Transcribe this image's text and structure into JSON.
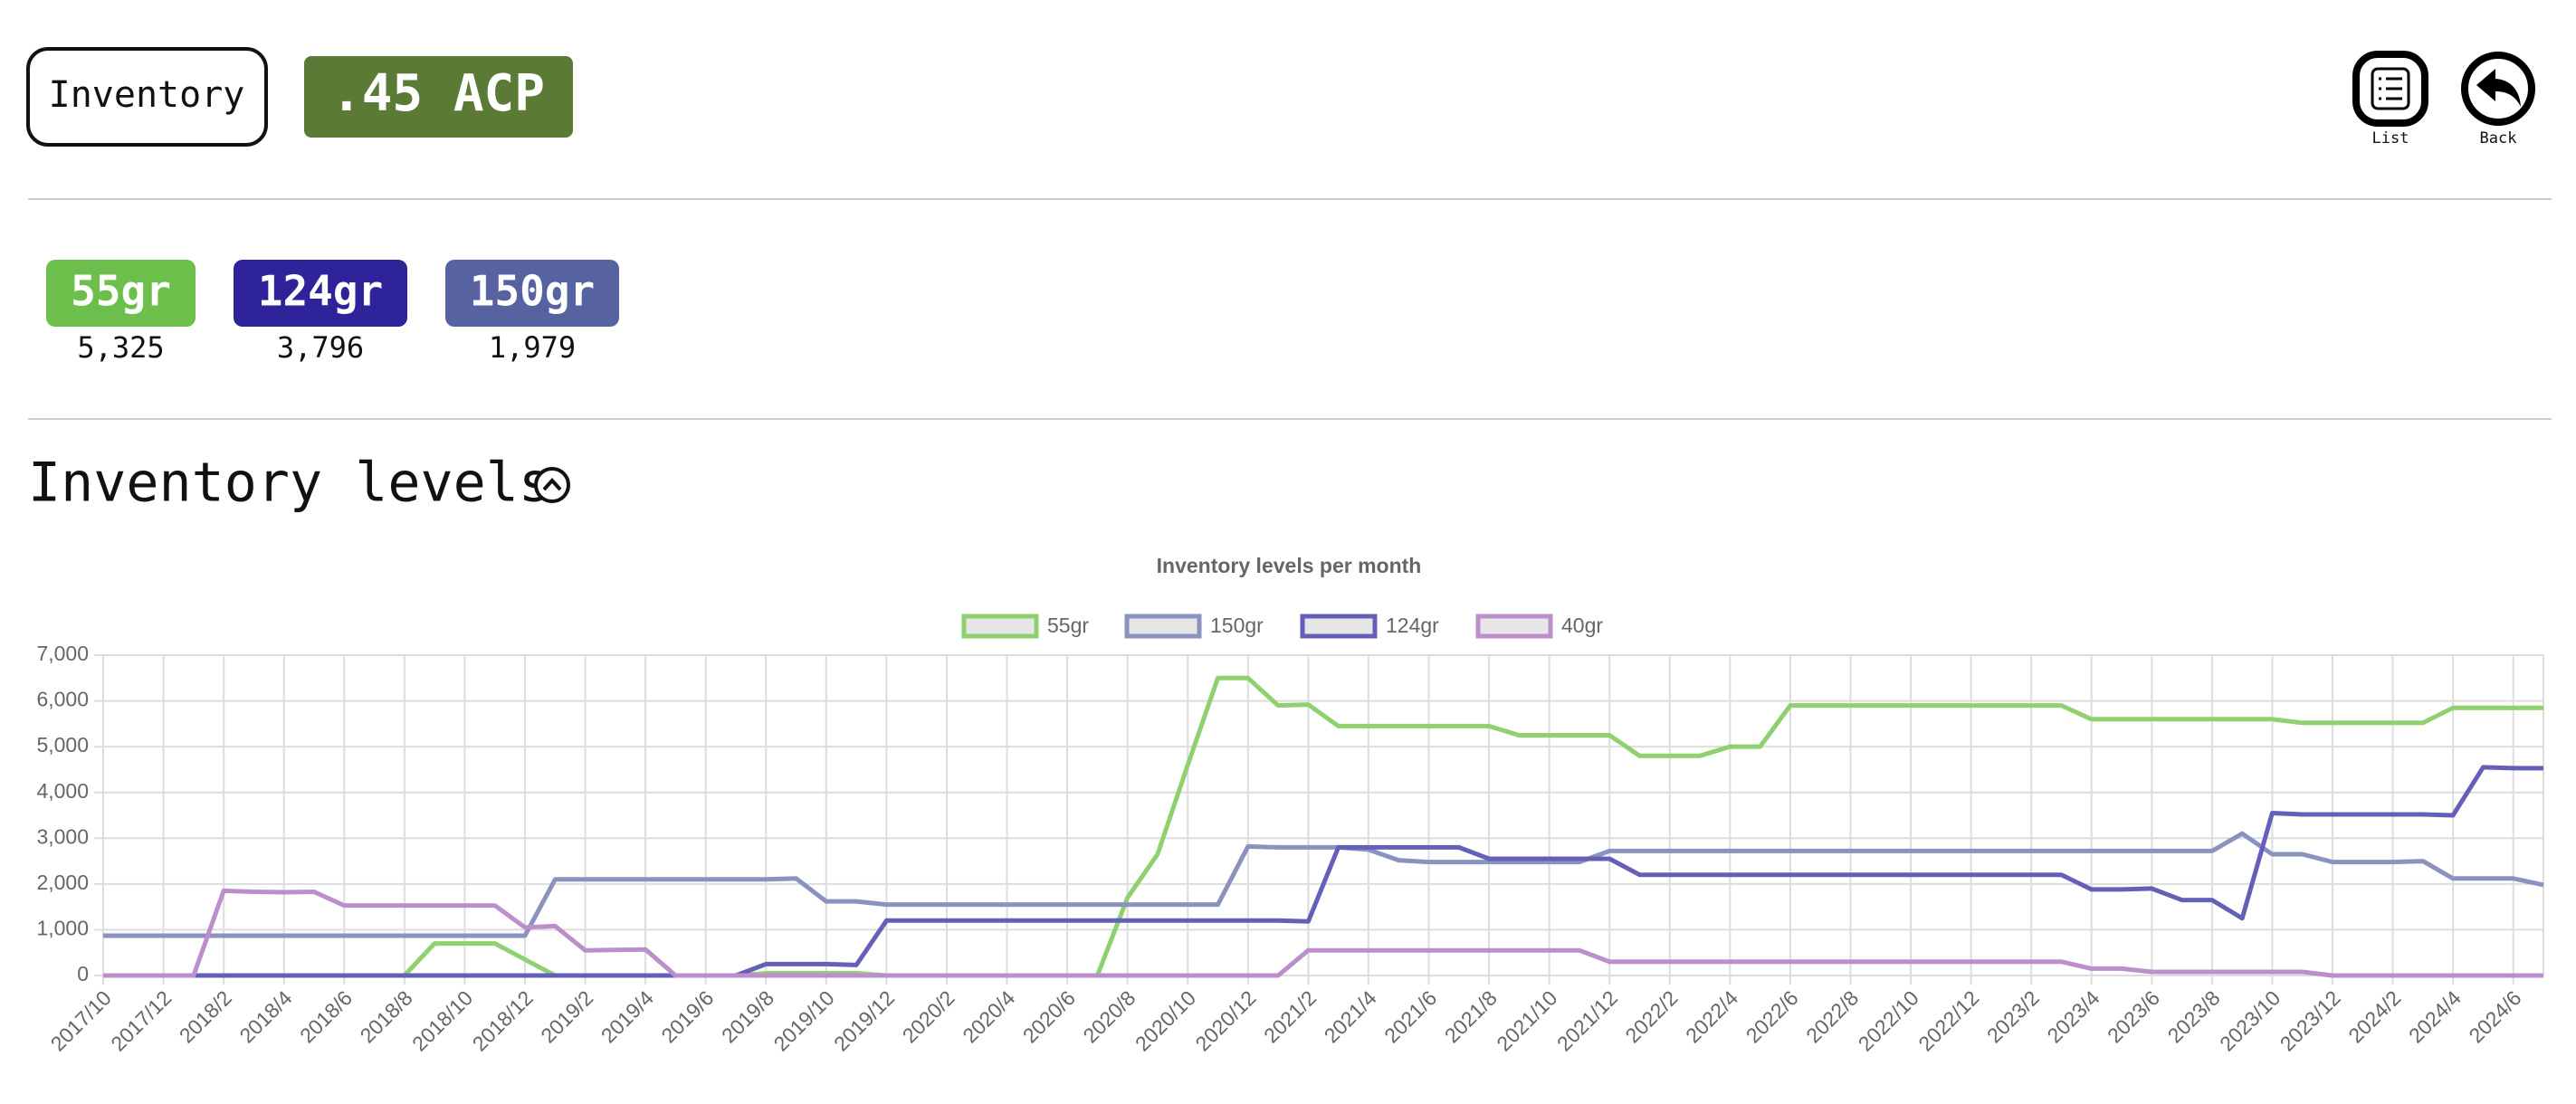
{
  "header": {
    "title": "Inventory",
    "caliber": ".45 ACP",
    "actions": [
      {
        "label": "List"
      },
      {
        "label": "Back"
      }
    ]
  },
  "summary": [
    {
      "name": "55gr",
      "count": "5,325",
      "color": "#6cbf4a"
    },
    {
      "name": "124gr",
      "count": "3,796",
      "color": "#2e2398"
    },
    {
      "name": "150gr",
      "count": "1,979",
      "color": "#5663a0"
    }
  ],
  "section_title": "Inventory levels",
  "chart_data": {
    "type": "line",
    "title": "Inventory levels per month",
    "legend": "top",
    "grid": true,
    "categories": [
      "2017/10",
      null,
      "2017/12",
      null,
      "2018/2",
      null,
      "2018/4",
      null,
      "2018/6",
      null,
      "2018/8",
      null,
      "2018/10",
      null,
      "2018/12",
      null,
      "2019/2",
      null,
      "2019/4",
      null,
      "2019/6",
      null,
      "2019/8",
      null,
      "2019/10",
      null,
      "2019/12",
      null,
      "2020/2",
      null,
      "2020/4",
      null,
      "2020/6",
      null,
      "2020/8",
      null,
      "2020/10",
      null,
      "2020/12",
      null,
      "2021/2",
      null,
      "2021/4",
      null,
      "2021/6",
      null,
      "2021/8",
      null,
      "2021/10",
      null,
      "2021/12",
      null,
      "2022/2",
      null,
      "2022/4",
      null,
      "2022/6",
      null,
      "2022/8",
      null,
      "2022/10",
      null,
      "2022/12",
      null,
      "2023/2",
      null,
      "2023/4",
      null,
      "2023/6",
      null,
      "2023/8",
      null,
      "2023/10",
      null,
      "2023/12",
      null,
      "2024/2",
      null,
      "2024/4",
      null,
      "2024/6",
      null
    ],
    "ylim": [
      0,
      7000
    ],
    "yticks": [
      0,
      {
        "value": 1000,
        "label": "1,000"
      },
      {
        "value": 2000,
        "label": "2,000"
      },
      {
        "value": 3000,
        "label": "3,000"
      },
      {
        "value": 4000,
        "label": "4,000"
      },
      {
        "value": 5000,
        "label": "5,000"
      },
      {
        "value": 6000,
        "label": "6,000"
      },
      {
        "value": 7000,
        "label": "7,000"
      }
    ],
    "series": [
      {
        "name": "55gr",
        "color": "#8fd06f",
        "values": [
          0,
          0,
          0,
          0,
          0,
          0,
          0,
          0,
          0,
          0,
          0,
          700,
          700,
          700,
          350,
          0,
          0,
          0,
          0,
          0,
          0,
          0,
          50,
          50,
          50,
          50,
          0,
          0,
          0,
          0,
          0,
          0,
          0,
          0,
          1700,
          2650,
          4600,
          6500,
          6500,
          5900,
          5920,
          5450,
          5450,
          5450,
          5450,
          5450,
          5450,
          5250,
          5250,
          5250,
          5250,
          4800,
          4800,
          4800,
          5000,
          5000,
          5900,
          5900,
          5900,
          5900,
          5900,
          5900,
          5900,
          5900,
          5900,
          5900,
          5600,
          5600,
          5600,
          5600,
          5600,
          5600,
          5600,
          5520,
          5520,
          5520,
          5520,
          5520,
          5850,
          5850,
          5850,
          5850
        ]
      },
      {
        "name": "150gr",
        "color": "#8a92bf",
        "values": [
          870,
          870,
          870,
          870,
          870,
          870,
          870,
          870,
          870,
          870,
          870,
          870,
          870,
          870,
          870,
          2100,
          2100,
          2100,
          2100,
          2100,
          2100,
          2100,
          2100,
          2120,
          1620,
          1620,
          1550,
          1550,
          1550,
          1550,
          1550,
          1550,
          1550,
          1550,
          1550,
          1550,
          1550,
          1550,
          2820,
          2800,
          2800,
          2800,
          2750,
          2520,
          2480,
          2480,
          2480,
          2480,
          2480,
          2480,
          2720,
          2720,
          2720,
          2720,
          2720,
          2720,
          2720,
          2720,
          2720,
          2720,
          2720,
          2720,
          2720,
          2720,
          2720,
          2720,
          2720,
          2720,
          2720,
          2720,
          2720,
          3100,
          2650,
          2650,
          2480,
          2480,
          2480,
          2500,
          2120,
          2120,
          2120,
          1980
        ]
      },
      {
        "name": "124gr",
        "color": "#6460b8",
        "values": [
          0,
          0,
          0,
          0,
          0,
          0,
          0,
          0,
          0,
          0,
          0,
          0,
          0,
          0,
          0,
          0,
          0,
          0,
          0,
          0,
          0,
          0,
          250,
          250,
          250,
          230,
          1200,
          1200,
          1200,
          1200,
          1200,
          1200,
          1200,
          1200,
          1200,
          1200,
          1200,
          1200,
          1200,
          1200,
          1180,
          2800,
          2800,
          2800,
          2800,
          2800,
          2550,
          2550,
          2550,
          2550,
          2550,
          2200,
          2200,
          2200,
          2200,
          2200,
          2200,
          2200,
          2200,
          2200,
          2200,
          2200,
          2200,
          2200,
          2200,
          2200,
          1880,
          1880,
          1900,
          1650,
          1650,
          1250,
          3550,
          3520,
          3520,
          3520,
          3520,
          3520,
          3500,
          4550,
          4530,
          4530
        ]
      },
      {
        "name": "40gr",
        "color": "#ba8fcb",
        "values": [
          0,
          0,
          0,
          0,
          1850,
          1830,
          1820,
          1830,
          1530,
          1530,
          1530,
          1530,
          1530,
          1530,
          1050,
          1080,
          550,
          560,
          570,
          0,
          0,
          0,
          0,
          0,
          0,
          0,
          0,
          0,
          0,
          0,
          0,
          0,
          0,
          0,
          0,
          0,
          0,
          0,
          0,
          0,
          550,
          550,
          550,
          550,
          550,
          550,
          550,
          550,
          550,
          550,
          300,
          300,
          300,
          300,
          300,
          300,
          300,
          300,
          300,
          300,
          300,
          300,
          300,
          300,
          300,
          300,
          150,
          150,
          80,
          80,
          80,
          80,
          80,
          80,
          0,
          0,
          0,
          0,
          0,
          0,
          0,
          0
        ]
      }
    ]
  }
}
